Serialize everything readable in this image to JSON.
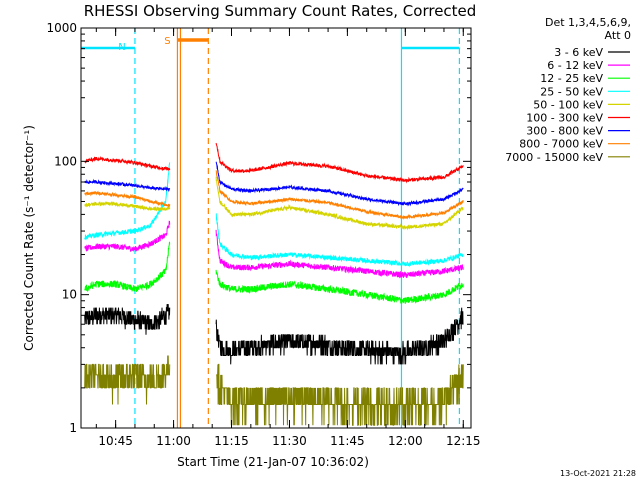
{
  "chart_data": {
    "type": "line",
    "title": "RHESSI Observing Summary Count Rates, Corrected",
    "xlabel": "Start Time (21-Jan-07 10:36:02)",
    "ylabel": "Corrected Count Rate (s⁻¹ detector⁻¹)",
    "yscale": "log",
    "ylim": [
      1,
      1000
    ],
    "y_ticks": [
      1,
      10,
      100,
      1000
    ],
    "y_tick_labels": [
      "1",
      "10",
      "100",
      "1000"
    ],
    "xlim": [
      "10:36:02",
      "12:17:00"
    ],
    "x_ticks": [
      "10:45",
      "11:00",
      "11:15",
      "11:30",
      "11:45",
      "12:00",
      "12:15"
    ],
    "grid": false,
    "legend_placement": "right",
    "legend_header": [
      "Det 1,3,4,5,6,9,",
      "Att 0"
    ],
    "flags": [
      {
        "label": "N",
        "color": "#00e5ff",
        "kind": "night",
        "intervals": [
          [
            "10:36:02",
            "10:50:00"
          ],
          [
            "11:59:00",
            "12:14:00"
          ]
        ],
        "vertical_lines": [
          "10:50:00",
          "11:59:00",
          "12:14:00"
        ]
      },
      {
        "label": "S",
        "color": "#ff8000",
        "kind": "saa",
        "intervals": [
          [
            "11:01:00",
            "11:09:00"
          ]
        ],
        "vertical_lines": [
          "11:01:00",
          "11:09:00"
        ]
      }
    ],
    "series": [
      {
        "name": "3 - 6 keV",
        "color": "#000000",
        "noise": 0.16,
        "segments": [
          {
            "x": [
              "10:37",
              "10:40",
              "10:45",
              "10:50",
              "10:54",
              "10:58",
              "10:59"
            ],
            "y": [
              6.5,
              7,
              7,
              6.5,
              6,
              7,
              7.5
            ]
          },
          {
            "x": [
              "11:11",
              "11:12",
              "11:15",
              "11:20",
              "11:30",
              "11:40",
              "11:50",
              "12:00",
              "12:10",
              "12:15"
            ],
            "y": [
              6,
              4,
              3.8,
              4,
              4.5,
              4.2,
              3.8,
              3.7,
              4.5,
              7
            ]
          }
        ]
      },
      {
        "name": "6 - 12 keV",
        "color": "#ff00ff",
        "noise": 0.05,
        "segments": [
          {
            "x": [
              "10:37",
              "10:40",
              "10:45",
              "10:50",
              "10:54",
              "10:58",
              "10:59"
            ],
            "y": [
              22,
              23,
              23,
              22,
              24,
              28,
              35
            ]
          },
          {
            "x": [
              "11:11",
              "11:12",
              "11:15",
              "11:20",
              "11:30",
              "11:40",
              "11:50",
              "12:00",
              "12:10",
              "12:15"
            ],
            "y": [
              30,
              18,
              16,
              16,
              17,
              16,
              15,
              14,
              15,
              16
            ]
          }
        ]
      },
      {
        "name": "12 - 25 keV",
        "color": "#00ff00",
        "noise": 0.06,
        "segments": [
          {
            "x": [
              "10:37",
              "10:40",
              "10:45",
              "10:50",
              "10:54",
              "10:58",
              "10:59"
            ],
            "y": [
              11,
              12,
              12,
              11,
              12,
              15,
              25
            ]
          },
          {
            "x": [
              "11:11",
              "11:12",
              "11:15",
              "11:20",
              "11:30",
              "11:40",
              "11:50",
              "12:00",
              "12:10",
              "12:15"
            ],
            "y": [
              15,
              12,
              11,
              11,
              12,
              11,
              10,
              9,
              10,
              12
            ]
          }
        ]
      },
      {
        "name": "25 - 50 keV",
        "color": "#00ffff",
        "noise": 0.04,
        "segments": [
          {
            "x": [
              "10:37",
              "10:40",
              "10:45",
              "10:50",
              "10:54",
              "10:58",
              "10:59"
            ],
            "y": [
              27,
              28,
              29,
              30,
              33,
              50,
              100
            ]
          },
          {
            "x": [
              "11:11",
              "11:12",
              "11:15",
              "11:20",
              "11:30",
              "11:40",
              "11:50",
              "12:00",
              "12:10",
              "12:15"
            ],
            "y": [
              40,
              24,
              20,
              19,
              20,
              19,
              18,
              17,
              18,
              20
            ]
          }
        ]
      },
      {
        "name": "50 - 100 keV",
        "color": "#d4d400",
        "noise": 0.03,
        "segments": [
          {
            "x": [
              "10:37",
              "10:40",
              "10:45",
              "10:50",
              "10:54",
              "10:58",
              "10:59"
            ],
            "y": [
              47,
              48,
              48,
              46,
              44,
              44,
              45
            ]
          },
          {
            "x": [
              "11:11",
              "11:12",
              "11:15",
              "11:20",
              "11:30",
              "11:40",
              "11:50",
              "12:00",
              "12:10",
              "12:15"
            ],
            "y": [
              75,
              50,
              40,
              40,
              45,
              40,
              34,
              32,
              34,
              45
            ]
          }
        ]
      },
      {
        "name": "100 - 300 keV",
        "color": "#ff0000",
        "noise": 0.03,
        "segments": [
          {
            "x": [
              "10:37",
              "10:40",
              "10:45",
              "10:50",
              "10:54",
              "10:58",
              "10:59"
            ],
            "y": [
              100,
              105,
              102,
              98,
              92,
              88,
              88
            ]
          },
          {
            "x": [
              "11:11",
              "11:12",
              "11:15",
              "11:20",
              "11:30",
              "11:40",
              "11:50",
              "12:00",
              "12:10",
              "12:15"
            ],
            "y": [
              140,
              100,
              85,
              85,
              97,
              92,
              78,
              72,
              76,
              92
            ]
          }
        ]
      },
      {
        "name": "300 - 800 keV",
        "color": "#0000ff",
        "noise": 0.025,
        "segments": [
          {
            "x": [
              "10:37",
              "10:40",
              "10:45",
              "10:50",
              "10:54",
              "10:58",
              "10:59"
            ],
            "y": [
              70,
              70,
              68,
              66,
              63,
              62,
              62
            ]
          },
          {
            "x": [
              "11:11",
              "11:12",
              "11:15",
              "11:20",
              "11:30",
              "11:40",
              "11:50",
              "12:00",
              "12:10",
              "12:15"
            ],
            "y": [
              100,
              70,
              62,
              60,
              64,
              60,
              52,
              48,
              52,
              62
            ]
          }
        ]
      },
      {
        "name": "800 - 7000 keV",
        "color": "#ff8000",
        "noise": 0.025,
        "segments": [
          {
            "x": [
              "10:37",
              "10:40",
              "10:45",
              "10:50",
              "10:54",
              "10:58",
              "10:59"
            ],
            "y": [
              57,
              58,
              56,
              54,
              50,
              47,
              47
            ]
          },
          {
            "x": [
              "11:11",
              "11:12",
              "11:15",
              "11:20",
              "11:30",
              "11:40",
              "11:50",
              "12:00",
              "12:10",
              "12:15"
            ],
            "y": [
              85,
              60,
              50,
              48,
              52,
              49,
              42,
              38,
              41,
              50
            ]
          }
        ]
      },
      {
        "name": "7000 - 15000 keV",
        "color": "#808000",
        "noise": 0.28,
        "segments": [
          {
            "x": [
              "10:37",
              "10:40",
              "10:45",
              "10:50",
              "10:54",
              "10:58",
              "10:59"
            ],
            "y": [
              2.5,
              2.5,
              2.3,
              2.5,
              2.3,
              2.6,
              3
            ]
          },
          {
            "x": [
              "11:11",
              "11:12",
              "11:15",
              "11:20",
              "11:30",
              "11:40",
              "11:50",
              "12:00",
              "12:10",
              "12:15"
            ],
            "y": [
              3,
              2,
              1.6,
              1.6,
              1.7,
              1.6,
              1.5,
              1.5,
              1.6,
              2.5
            ]
          }
        ]
      }
    ]
  },
  "footer": {
    "timestamp": "13-Oct-2021 21:28"
  }
}
